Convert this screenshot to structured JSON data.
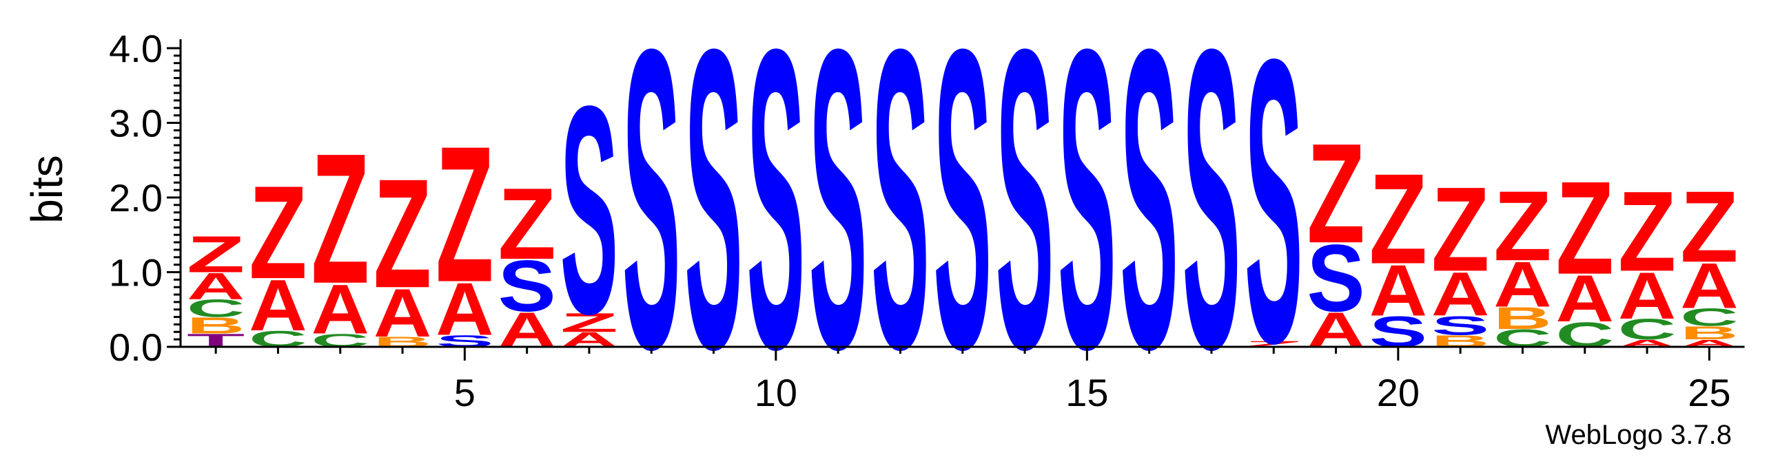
{
  "chart_data": {
    "type": "sequence-logo",
    "ylabel": "bits",
    "ylim": [
      0,
      4
    ],
    "y_ticks": [
      "0.0",
      "1.0",
      "2.0",
      "3.0",
      "4.0"
    ],
    "x_ticks": [
      5,
      10,
      15,
      20,
      25
    ],
    "x_range": [
      1,
      25
    ],
    "credit": "WebLogo 3.7.8",
    "colors": {
      "Z": "#ff0000",
      "A": "#ff0000",
      "S": "#0000ff",
      "C": "#228b22",
      "B": "#ff8c00",
      "T": "#800080"
    },
    "positions": [
      {
        "pos": 1,
        "stack": [
          {
            "l": "T",
            "h": 0.18
          },
          {
            "l": "B",
            "h": 0.22
          },
          {
            "l": "C",
            "h": 0.24
          },
          {
            "l": "A",
            "h": 0.36
          },
          {
            "l": "Z",
            "h": 0.5
          }
        ]
      },
      {
        "pos": 2,
        "stack": [
          {
            "l": "C",
            "h": 0.22
          },
          {
            "l": "A",
            "h": 0.7
          },
          {
            "l": "Z",
            "h": 1.28
          }
        ]
      },
      {
        "pos": 3,
        "stack": [
          {
            "l": "C",
            "h": 0.18
          },
          {
            "l": "A",
            "h": 0.68
          },
          {
            "l": "Z",
            "h": 1.79
          }
        ]
      },
      {
        "pos": 4,
        "stack": [
          {
            "l": "B",
            "h": 0.14
          },
          {
            "l": "A",
            "h": 0.66
          },
          {
            "l": "Z",
            "h": 1.5
          }
        ]
      },
      {
        "pos": 5,
        "stack": [
          {
            "l": "S",
            "h": 0.16
          },
          {
            "l": "A",
            "h": 0.72
          },
          {
            "l": "Z",
            "h": 1.87
          }
        ]
      },
      {
        "pos": 6,
        "stack": [
          {
            "l": "A",
            "h": 0.48
          },
          {
            "l": "S",
            "h": 0.7
          },
          {
            "l": "Z",
            "h": 0.98
          }
        ]
      },
      {
        "pos": 7,
        "stack": [
          {
            "l": "A",
            "h": 0.2
          },
          {
            "l": "Z",
            "h": 0.26
          },
          {
            "l": "S",
            "h": 2.86
          }
        ]
      },
      {
        "pos": 8,
        "stack": [
          {
            "l": "S",
            "h": 4.12
          }
        ]
      },
      {
        "pos": 9,
        "stack": [
          {
            "l": "S",
            "h": 4.12
          }
        ]
      },
      {
        "pos": 10,
        "stack": [
          {
            "l": "S",
            "h": 4.12
          }
        ]
      },
      {
        "pos": 11,
        "stack": [
          {
            "l": "S",
            "h": 4.12
          }
        ]
      },
      {
        "pos": 12,
        "stack": [
          {
            "l": "S",
            "h": 4.12
          }
        ]
      },
      {
        "pos": 13,
        "stack": [
          {
            "l": "S",
            "h": 4.12
          }
        ]
      },
      {
        "pos": 14,
        "stack": [
          {
            "l": "S",
            "h": 4.12
          }
        ]
      },
      {
        "pos": 15,
        "stack": [
          {
            "l": "S",
            "h": 4.12
          }
        ]
      },
      {
        "pos": 16,
        "stack": [
          {
            "l": "S",
            "h": 4.12
          }
        ]
      },
      {
        "pos": 17,
        "stack": [
          {
            "l": "S",
            "h": 4.12
          }
        ]
      },
      {
        "pos": 18,
        "stack": [
          {
            "l": "Z",
            "h": 0.08
          },
          {
            "l": "S",
            "h": 3.9
          }
        ]
      },
      {
        "pos": 19,
        "stack": [
          {
            "l": "A",
            "h": 0.48
          },
          {
            "l": "S",
            "h": 0.92
          },
          {
            "l": "Z",
            "h": 1.37
          }
        ]
      },
      {
        "pos": 20,
        "stack": [
          {
            "l": "S",
            "h": 0.42
          },
          {
            "l": "A",
            "h": 0.7
          },
          {
            "l": "Z",
            "h": 1.24
          }
        ]
      },
      {
        "pos": 21,
        "stack": [
          {
            "l": "B",
            "h": 0.16
          },
          {
            "l": "S",
            "h": 0.26
          },
          {
            "l": "A",
            "h": 0.6
          },
          {
            "l": "Z",
            "h": 1.16
          }
        ]
      },
      {
        "pos": 22,
        "stack": [
          {
            "l": "C",
            "h": 0.24
          },
          {
            "l": "B",
            "h": 0.3
          },
          {
            "l": "A",
            "h": 0.62
          },
          {
            "l": "Z",
            "h": 0.96
          }
        ]
      },
      {
        "pos": 23,
        "stack": [
          {
            "l": "C",
            "h": 0.34
          },
          {
            "l": "A",
            "h": 0.64
          },
          {
            "l": "Z",
            "h": 1.28
          }
        ]
      },
      {
        "pos": 24,
        "stack": [
          {
            "l": "A",
            "h": 0.1
          },
          {
            "l": "C",
            "h": 0.28
          },
          {
            "l": "A",
            "h": 0.64
          },
          {
            "l": "Z",
            "h": 1.1
          }
        ]
      },
      {
        "pos": 25,
        "stack": [
          {
            "l": "A",
            "h": 0.1
          },
          {
            "l": "B",
            "h": 0.18
          },
          {
            "l": "C",
            "h": 0.24
          },
          {
            "l": "A",
            "h": 0.62
          },
          {
            "l": "Z",
            "h": 0.98
          }
        ]
      }
    ]
  }
}
